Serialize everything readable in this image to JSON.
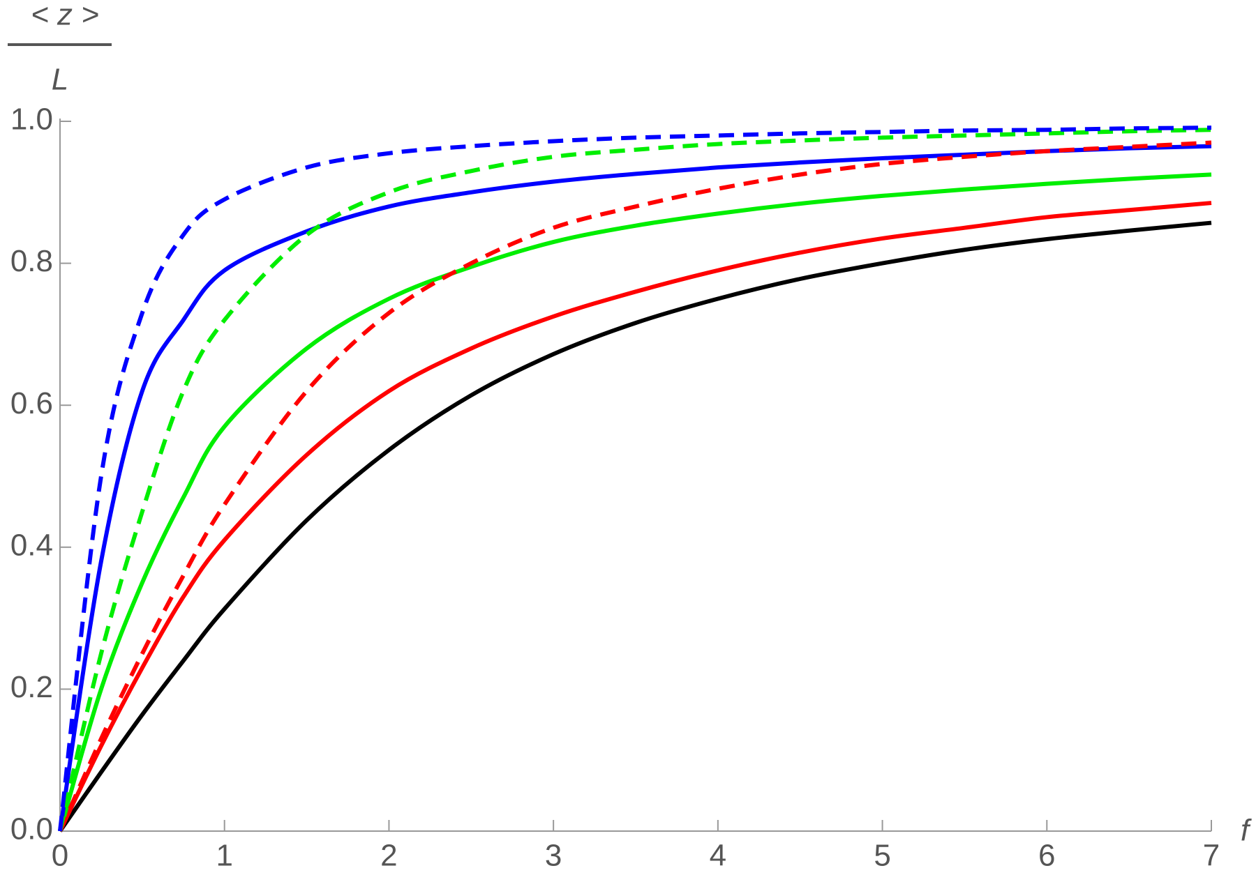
{
  "chart_data": {
    "type": "line",
    "ylabel_numerator": "< z >",
    "ylabel_denominator": "L",
    "xlabel": "f",
    "x": [
      0,
      0.25,
      0.5,
      0.75,
      1,
      1.5,
      2,
      2.5,
      3,
      3.5,
      4,
      4.5,
      5,
      5.5,
      6,
      6.5,
      7
    ],
    "series": [
      {
        "color": "#000000",
        "dashed": false,
        "values": [
          0,
          0.083,
          0.164,
          0.24,
          0.313,
          0.438,
          0.537,
          0.614,
          0.672,
          0.716,
          0.75,
          0.778,
          0.8,
          0.819,
          0.834,
          0.846,
          0.857
        ]
      },
      {
        "color": "#ff0000",
        "dashed": false,
        "values": [
          0,
          0.12,
          0.23,
          0.33,
          0.41,
          0.53,
          0.62,
          0.68,
          0.725,
          0.76,
          0.79,
          0.815,
          0.835,
          0.85,
          0.865,
          0.875,
          0.885
        ]
      },
      {
        "color": "#00ee00",
        "dashed": false,
        "values": [
          0,
          0.2,
          0.35,
          0.47,
          0.57,
          0.68,
          0.75,
          0.795,
          0.83,
          0.853,
          0.87,
          0.884,
          0.895,
          0.904,
          0.912,
          0.919,
          0.925
        ]
      },
      {
        "color": "#0000ff",
        "dashed": false,
        "values": [
          0,
          0.38,
          0.62,
          0.72,
          0.79,
          0.845,
          0.88,
          0.9,
          0.915,
          0.926,
          0.935,
          0.942,
          0.948,
          0.953,
          0.958,
          0.962,
          0.965
        ]
      },
      {
        "color": "#ff0000",
        "dashed": true,
        "values": [
          0,
          0.13,
          0.25,
          0.36,
          0.46,
          0.62,
          0.73,
          0.8,
          0.85,
          0.88,
          0.905,
          0.925,
          0.94,
          0.95,
          0.958,
          0.964,
          0.97
        ]
      },
      {
        "color": "#00ee00",
        "dashed": true,
        "values": [
          0,
          0.25,
          0.45,
          0.62,
          0.72,
          0.84,
          0.9,
          0.93,
          0.95,
          0.96,
          0.968,
          0.973,
          0.977,
          0.98,
          0.983,
          0.986,
          0.988
        ]
      },
      {
        "color": "#0000ff",
        "dashed": true,
        "values": [
          0,
          0.5,
          0.73,
          0.84,
          0.89,
          0.935,
          0.955,
          0.965,
          0.972,
          0.977,
          0.98,
          0.983,
          0.985,
          0.987,
          0.988,
          0.99,
          0.991
        ]
      }
    ],
    "xlim": [
      0,
      7
    ],
    "ylim": [
      0,
      1
    ],
    "xticks": [
      0,
      1,
      2,
      3,
      4,
      5,
      6,
      7
    ],
    "yticks": [
      {
        "value": 0,
        "label": "0.0"
      },
      0.2,
      0.4,
      0.6,
      0.8,
      {
        "value": 1,
        "label": "1.0"
      }
    ]
  }
}
